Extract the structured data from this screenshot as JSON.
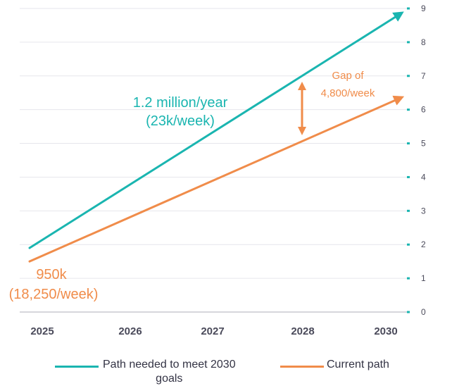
{
  "chart_data": {
    "type": "line",
    "x_categories": [
      "2025",
      "2026",
      "2027",
      "2028",
      "2030"
    ],
    "ylim": [
      0,
      9
    ],
    "y_ticks": [
      "0",
      "1",
      "2",
      "3",
      "4",
      "5",
      "6",
      "7",
      "8",
      "9"
    ],
    "grid": true,
    "legend_position": "bottom",
    "series": [
      {
        "name": "Path needed to meet 2030 goals",
        "color": "#1ab5b0",
        "start": 1.9,
        "end": 8.9
      },
      {
        "name": "Current path",
        "color": "#f08c4a",
        "start": 1.5,
        "end": 6.4
      }
    ],
    "annotations": {
      "needed_rate_line1": "1.2 million/year",
      "needed_rate_line2": "(23k/week)",
      "current_rate_line1": "950k",
      "current_rate_line2": "(18,250/week)",
      "gap_line1": "Gap of",
      "gap_line2": "4,800/week"
    }
  },
  "legend": {
    "needed_label_line1": "Path needed to meet 2030",
    "needed_label_line2": "goals",
    "current_label": "Current path"
  }
}
